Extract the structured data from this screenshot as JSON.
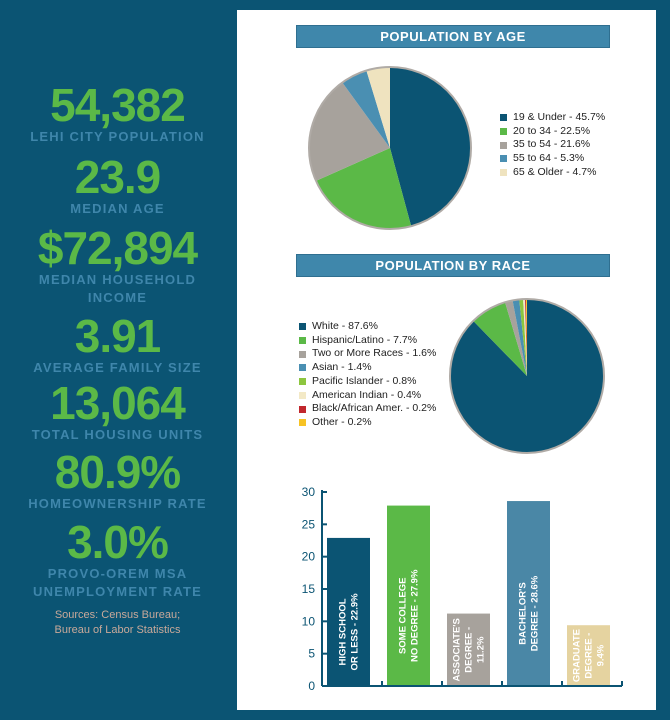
{
  "stats": [
    {
      "value": "54,382",
      "label": [
        "LEHI CITY POPULATION"
      ]
    },
    {
      "value": "23.9",
      "label": [
        "MEDIAN AGE"
      ]
    },
    {
      "value": "$72,894",
      "label": [
        "MEDIAN HOUSEHOLD",
        "INCOME"
      ]
    },
    {
      "value": "3.91",
      "label": [
        "AVERAGE FAMILY SIZE"
      ]
    },
    {
      "value": "13,064",
      "label": [
        "TOTAL HOUSING UNITS"
      ]
    },
    {
      "value": "80.9%",
      "label": [
        "HOMEOWNERSHIP RATE"
      ]
    },
    {
      "value": "3.0%",
      "label": [
        "PROVO-OREM MSA",
        "UNEMPLOYMENT RATE"
      ]
    }
  ],
  "sources": [
    "Sources: Census Bureau;",
    "Bureau of Labor Statistics"
  ],
  "colors": {
    "background": "#0b5473",
    "accent_green": "#5bb947",
    "label_blue": "#3f86ab",
    "header_bar": "#3f87ab"
  },
  "chart_data": [
    {
      "type": "pie",
      "title": "POPULATION BY AGE",
      "slices": [
        {
          "name": "19 & Under - 45.7%",
          "value": 45.7,
          "color": "#0b5473"
        },
        {
          "name": "20 to 34 - 22.5%",
          "value": 22.5,
          "color": "#5bb947"
        },
        {
          "name": "35 to 54 - 21.6%",
          "value": 21.6,
          "color": "#a7a29c"
        },
        {
          "name": "55 to 64 - 5.3%",
          "value": 5.3,
          "color": "#4a8fb2"
        },
        {
          "name": "65 & Older - 4.7%",
          "value": 4.7,
          "color": "#efe3bf"
        }
      ],
      "legend": "right"
    },
    {
      "type": "pie",
      "title": "POPULATION BY RACE",
      "slices": [
        {
          "name": "White - 87.6%",
          "value": 87.6,
          "color": "#0b5473"
        },
        {
          "name": "Hispanic/Latino - 7.7%",
          "value": 7.7,
          "color": "#5bb947"
        },
        {
          "name": "Two or More Races - 1.6%",
          "value": 1.6,
          "color": "#a7a29c"
        },
        {
          "name": "Asian - 1.4%",
          "value": 1.4,
          "color": "#4a8fb2"
        },
        {
          "name": "Pacific Islander - 0.8%",
          "value": 0.8,
          "color": "#8dc63f"
        },
        {
          "name": "American Indian - 0.4%",
          "value": 0.4,
          "color": "#f3e9c6"
        },
        {
          "name": "Black/African Amer. - 0.2%",
          "value": 0.2,
          "color": "#c1272d"
        },
        {
          "name": "Other - 0.2%",
          "value": 0.2,
          "color": "#f7c325"
        }
      ],
      "legend": "left"
    },
    {
      "type": "bar",
      "title": "",
      "categories": [
        "HIGH SCHOOL OR LESS - 22.9%",
        "SOME COLLEGE NO DEGREE - 27.9%",
        "ASSOCIATE'S DEGREE - 11.2%",
        "BACHELOR'S DEGREE - 28.6%",
        "GRADUATE DEGREE - 9.4%"
      ],
      "bar_labels": [
        [
          "HIGH SCHOOL",
          "OR LESS - 22.9%"
        ],
        [
          "SOME COLLEGE",
          "NO DEGREE - 27.9%"
        ],
        [
          "ASSOCIATE'S",
          "DEGREE -",
          "11.2%"
        ],
        [
          "BACHELOR'S",
          "DEGREE - 28.6%"
        ],
        [
          "GRADUATE",
          "DEGREE -",
          "9.4%"
        ]
      ],
      "values": [
        22.9,
        27.9,
        11.2,
        28.6,
        9.4
      ],
      "colors": [
        "#0b5473",
        "#5bb947",
        "#a7a29c",
        "#4a87a6",
        "#e5d3a0"
      ],
      "yticks": [
        0,
        5,
        10,
        15,
        20,
        25,
        30
      ],
      "ylim": [
        0,
        30
      ],
      "grid": false
    }
  ]
}
